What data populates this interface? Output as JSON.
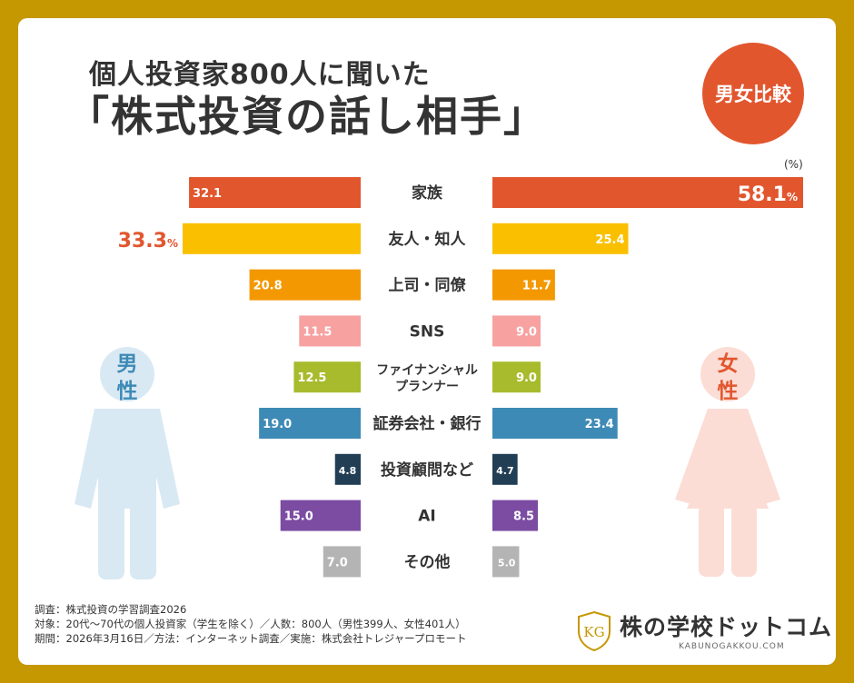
{
  "header": {
    "subtitle": "個人投資家800人に聞いた",
    "title": "「株式投資の話し相手」",
    "badge": "男女比較",
    "unit": "(%)"
  },
  "figures": {
    "male_label_1": "男",
    "male_label_2": "性",
    "female_label_1": "女",
    "female_label_2": "性"
  },
  "chart_data": {
    "type": "bar",
    "categories": [
      "家族",
      "友人・知人",
      "上司・同僚",
      "SNS",
      "ファイナンシャルプランナー",
      "証券会社・銀行",
      "投資顧問など",
      "AI",
      "その他"
    ],
    "category_display": [
      [
        "家族"
      ],
      [
        "友人・知人"
      ],
      [
        "上司・同僚"
      ],
      [
        "SNS"
      ],
      [
        "ファイナンシャル",
        "プランナー"
      ],
      [
        "証券会社・銀行"
      ],
      [
        "投資顧問など"
      ],
      [
        "AI"
      ],
      [
        "その他"
      ]
    ],
    "series": [
      {
        "name": "男性",
        "values": [
          32.1,
          33.3,
          20.8,
          11.5,
          12.5,
          19.0,
          4.8,
          15.0,
          7.0
        ]
      },
      {
        "name": "女性",
        "values": [
          58.1,
          25.4,
          11.7,
          9.0,
          9.0,
          23.4,
          4.7,
          8.5,
          5.0
        ]
      }
    ],
    "value_labels": {
      "男性": [
        "32.1",
        "33.3",
        "20.8",
        "11.5",
        "12.5",
        "19.0",
        "4.8",
        "15.0",
        "7.0"
      ],
      "女性": [
        "58.1",
        "25.4",
        "11.7",
        "9.0",
        "9.0",
        "23.4",
        "4.7",
        "8.5",
        "5.0"
      ]
    },
    "highlight": {
      "男性": 1,
      "女性": 0
    },
    "highlight_suffix": "%",
    "colors": [
      "#E2562E",
      "#FAC000",
      "#F39800",
      "#F7A1A1",
      "#A7BB2C",
      "#3E8AB6",
      "#223E55",
      "#7B4CA2",
      "#B4B4B4"
    ],
    "highlight_color": "#E2562E",
    "figure_colors": {
      "male": "#D9E9F4",
      "female": "#FBDDD6",
      "male_text": "#3E8AB6",
      "female_text": "#E2562E"
    },
    "xlim": [
      0,
      60
    ]
  },
  "footer": {
    "line1": "調査：株式投資の学習調査2026",
    "line2": "対象：20代〜70代の個人投資家（学生を除く）／人数：800人（男性399人、女性401人）",
    "line3": "期間：2026年3月16日／方法：インターネット調査／実施：株式会社トレジャープロモート"
  },
  "logo": {
    "mark": "KG",
    "text": "株の学校ドットコム",
    "sub": "KABUNOGAKKOU.COM",
    "colors": {
      "gold": "#C59700"
    }
  }
}
